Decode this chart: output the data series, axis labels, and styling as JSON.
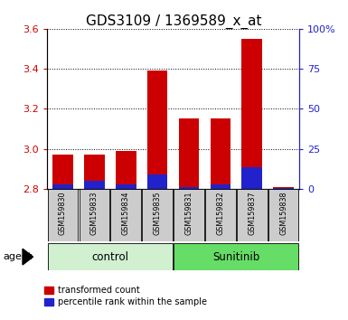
{
  "title": "GDS3109 / 1369589_x_at",
  "samples": [
    "GSM159830",
    "GSM159833",
    "GSM159834",
    "GSM159835",
    "GSM159831",
    "GSM159832",
    "GSM159837",
    "GSM159838"
  ],
  "red_values": [
    2.97,
    2.97,
    2.99,
    3.39,
    3.15,
    3.15,
    3.55,
    2.81
  ],
  "blue_values": [
    2.82,
    2.84,
    2.82,
    2.87,
    2.81,
    2.82,
    2.91,
    2.805
  ],
  "bar_bottom": 2.8,
  "ylim_left": [
    2.8,
    3.6
  ],
  "ylim_right": [
    0,
    100
  ],
  "yticks_left": [
    2.8,
    3.0,
    3.2,
    3.4,
    3.6
  ],
  "yticks_right": [
    0,
    25,
    50,
    75,
    100
  ],
  "ytick_labels_right": [
    "0",
    "25",
    "50",
    "75",
    "100%"
  ],
  "groups": [
    {
      "label": "control",
      "indices": [
        0,
        1,
        2,
        3
      ],
      "color": "#d0f0d0"
    },
    {
      "label": "Sunitinib",
      "indices": [
        4,
        5,
        6,
        7
      ],
      "color": "#66dd66"
    }
  ],
  "agent_label": "agent",
  "red_color": "#cc0000",
  "blue_color": "#2222cc",
  "bar_width": 0.65,
  "grid_color": "#000000",
  "tick_color_left": "#cc0000",
  "tick_color_right": "#2222cc",
  "legend_red": "transformed count",
  "legend_blue": "percentile rank within the sample",
  "sample_bg_color": "#cccccc",
  "title_fontsize": 11
}
